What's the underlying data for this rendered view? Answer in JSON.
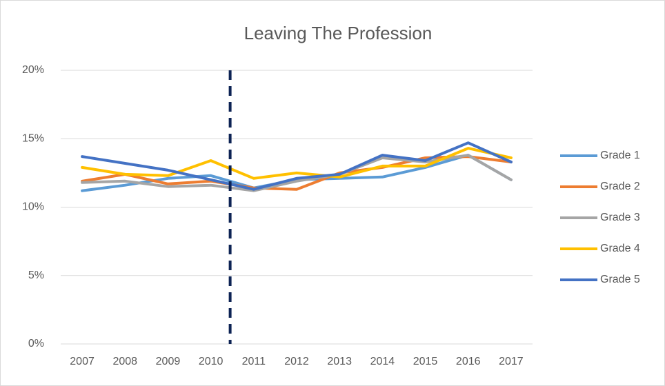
{
  "chart_data": {
    "type": "line",
    "title": "Leaving The Profession",
    "categories": [
      "2007",
      "2008",
      "2009",
      "2010",
      "2011",
      "2012",
      "2013",
      "2014",
      "2015",
      "2016",
      "2017"
    ],
    "series": [
      {
        "name": "Grade 1",
        "color": "#5b9bd5",
        "values": [
          11.2,
          11.6,
          12.1,
          12.3,
          11.4,
          12.0,
          12.1,
          12.2,
          12.9,
          13.8,
          12.0
        ]
      },
      {
        "name": "Grade 2",
        "color": "#ed7d31",
        "values": [
          11.9,
          12.4,
          11.7,
          11.9,
          11.4,
          11.3,
          12.5,
          12.9,
          13.6,
          13.7,
          13.3
        ]
      },
      {
        "name": "Grade 3",
        "color": "#a5a5a5",
        "values": [
          11.8,
          11.9,
          11.5,
          11.6,
          11.2,
          11.9,
          12.4,
          13.6,
          13.3,
          13.8,
          12.0
        ]
      },
      {
        "name": "Grade 4",
        "color": "#ffc000",
        "values": [
          12.9,
          12.4,
          12.3,
          13.4,
          12.1,
          12.5,
          12.2,
          13.0,
          13.0,
          14.3,
          13.6
        ]
      },
      {
        "name": "Grade 5",
        "color": "#4472c4",
        "values": [
          13.7,
          13.2,
          12.7,
          12.0,
          11.3,
          12.1,
          12.4,
          13.8,
          13.4,
          14.7,
          13.3
        ]
      }
    ],
    "ylim": [
      0,
      20
    ],
    "yticks": [
      {
        "value": 0,
        "label": "0%"
      },
      {
        "value": 5,
        "label": "5%"
      },
      {
        "value": 10,
        "label": "10%"
      },
      {
        "value": 15,
        "label": "15%"
      },
      {
        "value": 20,
        "label": "20%"
      }
    ],
    "grid": true,
    "legend": "right"
  }
}
